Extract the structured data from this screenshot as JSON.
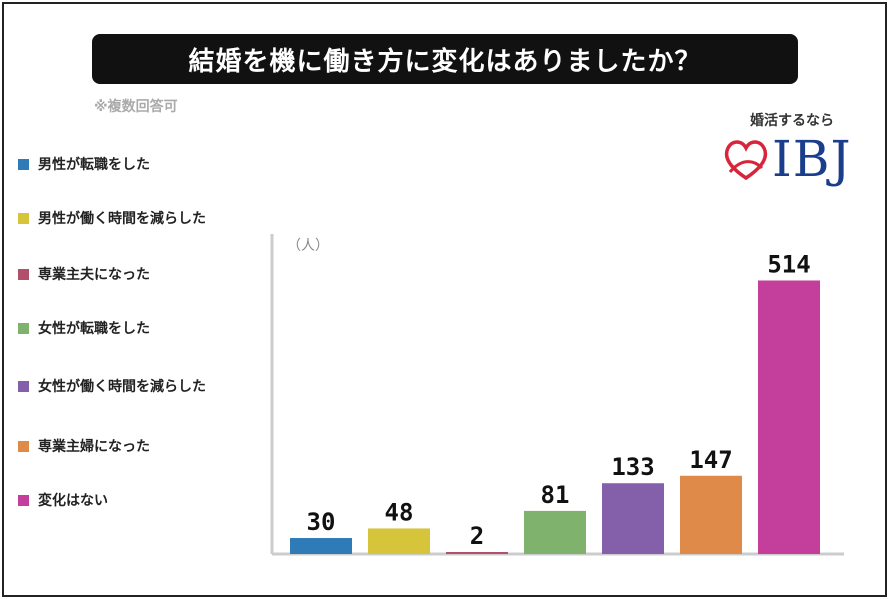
{
  "header": {
    "title": "結婚を機に働き方に変化はありましたか？",
    "note": "※複数回答可"
  },
  "logo": {
    "tagline": "婚活するなら",
    "brand": "IBJ",
    "heart_color": "#d8253b",
    "brand_color": "#1a3e8c"
  },
  "chart_data": {
    "type": "bar",
    "unit_label": "（人）",
    "categories": [
      "男性が転職をした",
      "男性が働く時間を減らした",
      "専業主夫になった",
      "女性が転職をした",
      "女性が働く時間を減らした",
      "専業主婦になった",
      "変化はない"
    ],
    "values": [
      30,
      48,
      2,
      81,
      133,
      147,
      514
    ],
    "colors": [
      "#2e7bb8",
      "#d6c43a",
      "#b0506a",
      "#7fb26d",
      "#8460aa",
      "#e08a4a",
      "#c43f9c"
    ],
    "ylim": [
      0,
      560
    ],
    "grid": false,
    "legend_position": "left"
  }
}
